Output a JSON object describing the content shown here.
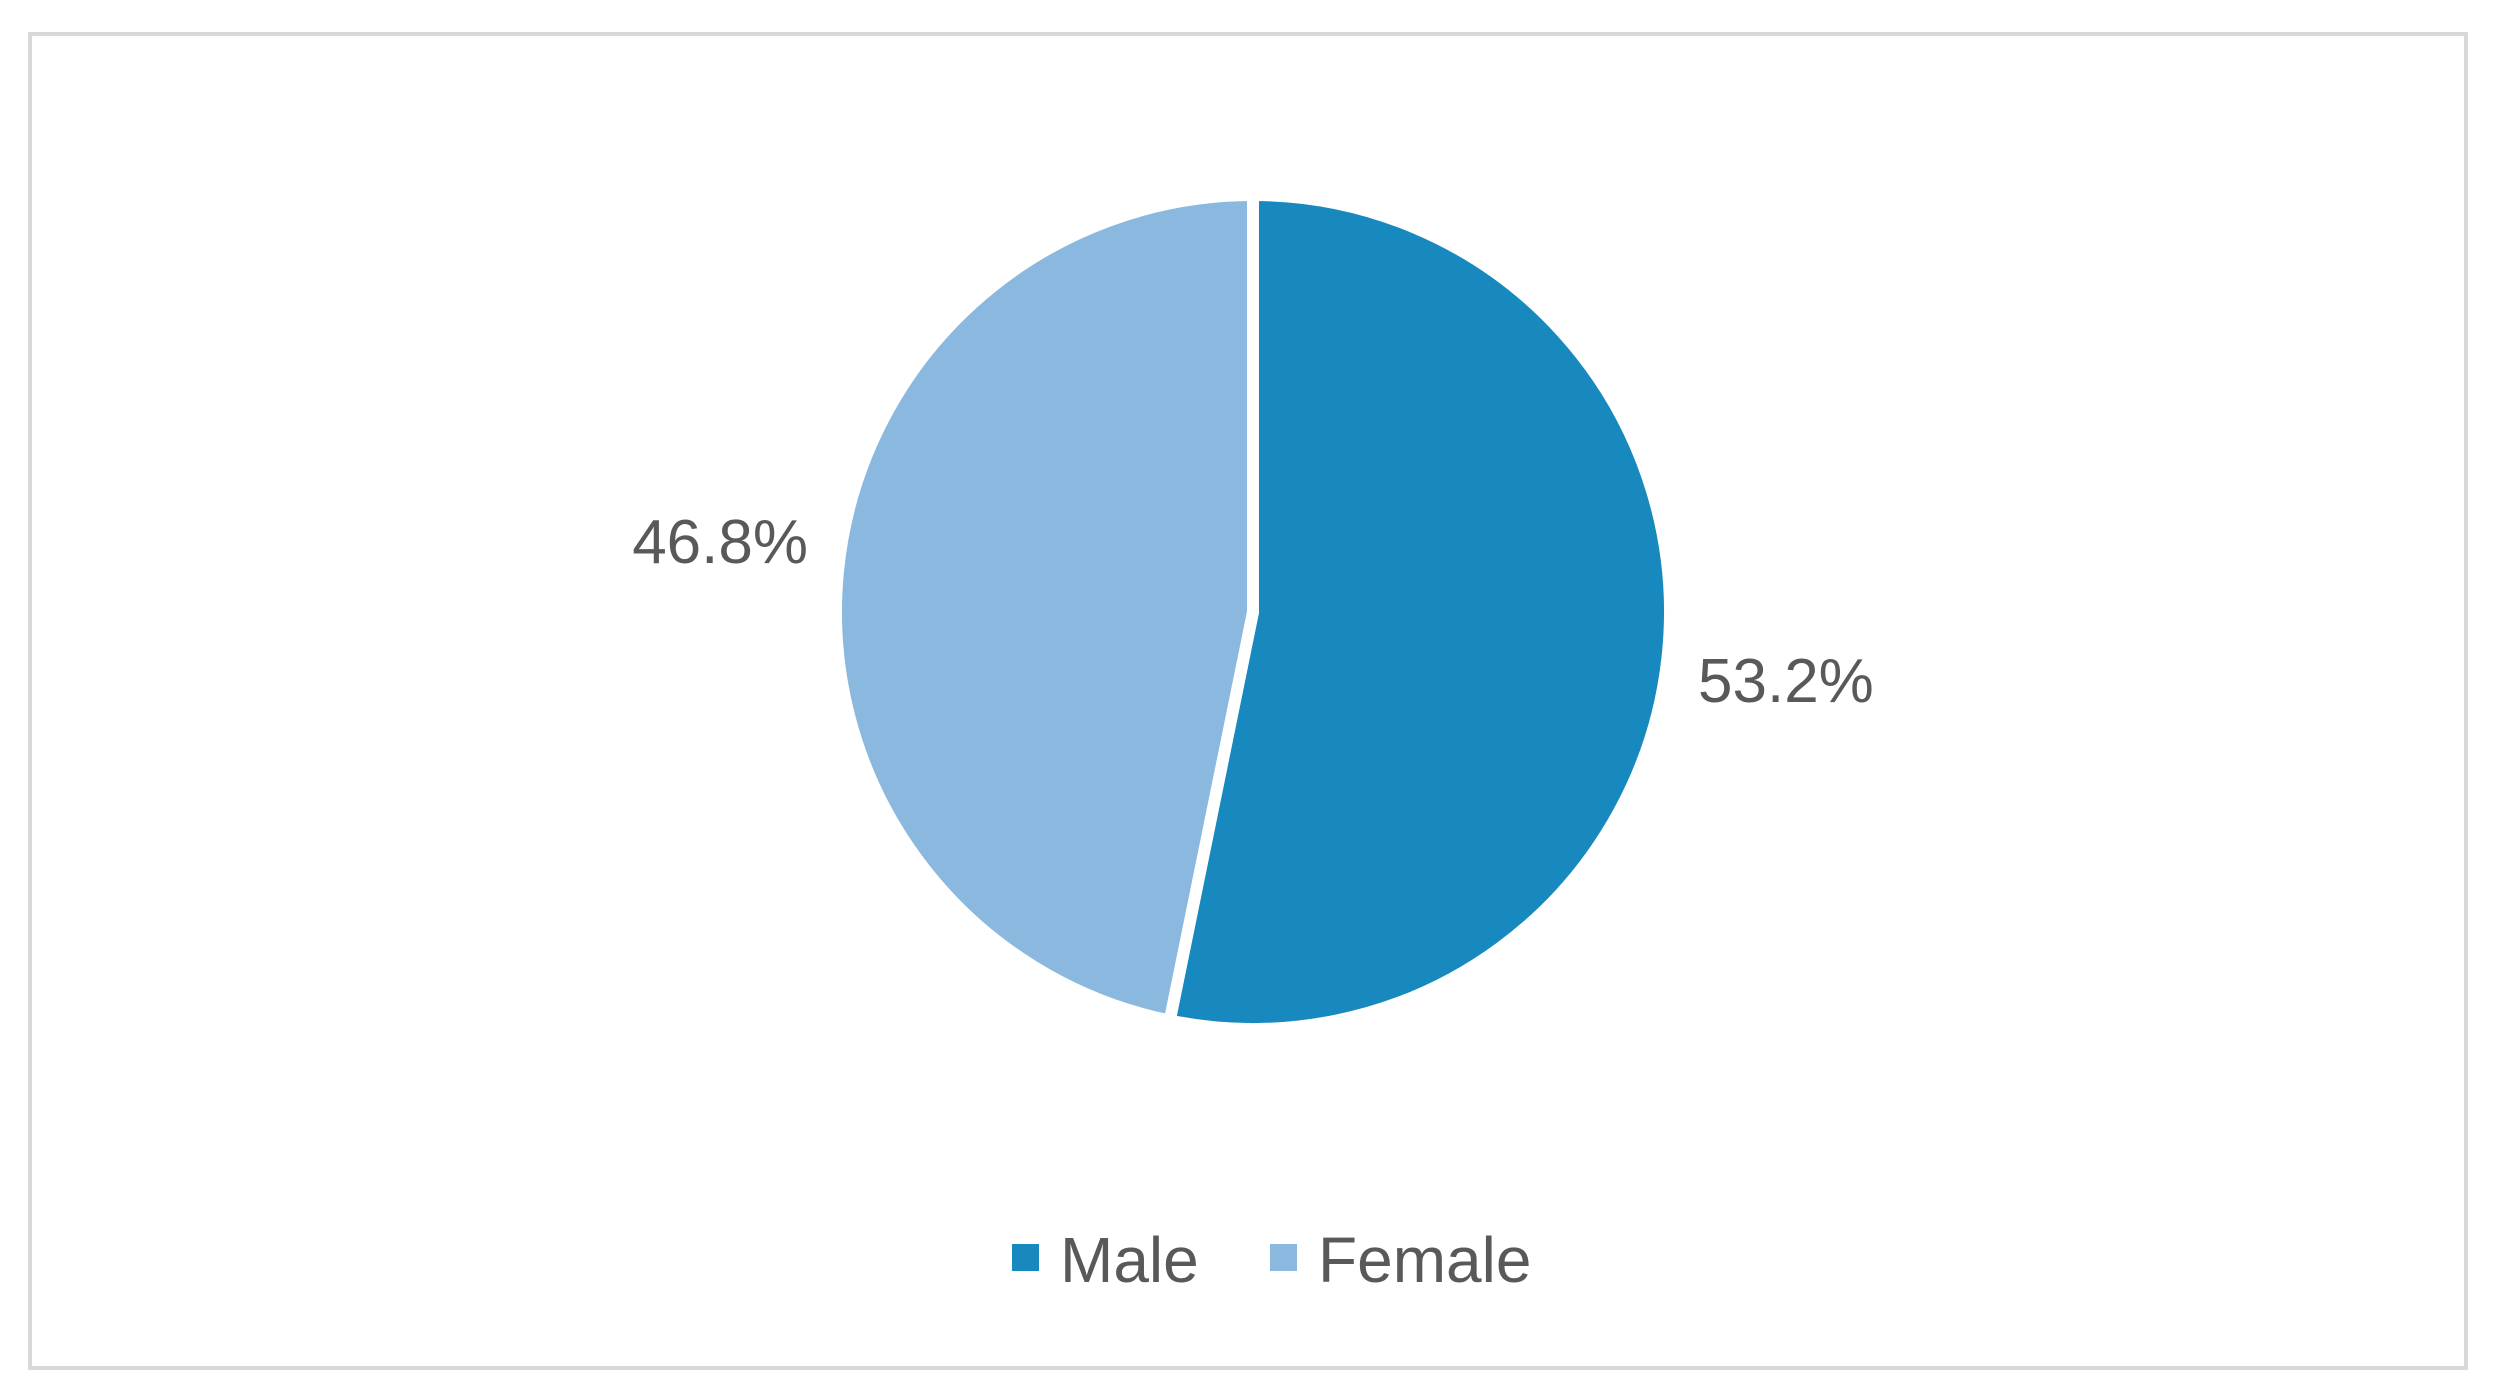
{
  "chart_data": {
    "type": "pie",
    "categories": [
      "Male",
      "Female"
    ],
    "values": [
      53.2,
      46.8
    ],
    "unit": "%",
    "data_labels": [
      "53.2%",
      "46.8%"
    ],
    "colors": [
      "#1789be",
      "#8ab8df"
    ],
    "legend": {
      "position": "bottom",
      "entries": [
        "Male",
        "Female"
      ]
    },
    "start_angle_deg": 0,
    "direction": "clockwise",
    "slice_separator_color": "#ffffff"
  }
}
